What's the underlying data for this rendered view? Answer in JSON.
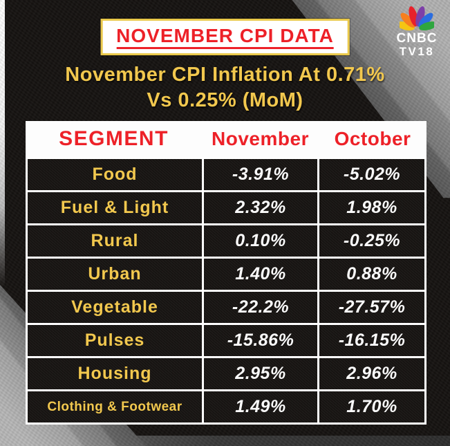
{
  "banner": {
    "title": "NOVEMBER CPI DATA"
  },
  "logo": {
    "line1": "CNBC",
    "line2": "TV18"
  },
  "subtitle": {
    "line1": "November CPI Inflation At 0.71%",
    "line2": "Vs 0.25% (MoM)"
  },
  "table": {
    "headers": [
      "SEGMENT",
      "November",
      "October"
    ],
    "rows": [
      {
        "segment": "Food",
        "november": "-3.91%",
        "october": "-5.02%"
      },
      {
        "segment": "Fuel & Light",
        "november": "2.32%",
        "october": "1.98%"
      },
      {
        "segment": "Rural",
        "november": "0.10%",
        "october": "-0.25%"
      },
      {
        "segment": "Urban",
        "november": "1.40%",
        "october": "0.88%"
      },
      {
        "segment": "Vegetable",
        "november": "-22.2%",
        "october": "-27.57%"
      },
      {
        "segment": "Pulses",
        "november": "-15.86%",
        "october": "-16.15%"
      },
      {
        "segment": "Housing",
        "november": "2.95%",
        "october": "2.96%"
      },
      {
        "segment": "Clothing & Footwear",
        "november": "1.49%",
        "october": "1.70%"
      }
    ]
  },
  "colors": {
    "accent_red": "#ed2128",
    "accent_yellow": "#f2c84e",
    "banner_border_gold": "#eac94b",
    "cell_background": "#1a1715",
    "value_white": "#fbfbfb"
  },
  "chart_data": {
    "type": "table",
    "title": "NOVEMBER CPI DATA",
    "subtitle": "November CPI Inflation At 0.71% Vs 0.25% (MoM)",
    "columns": [
      "SEGMENT",
      "November",
      "October"
    ],
    "rows": [
      [
        "Food",
        -3.91,
        -5.02
      ],
      [
        "Fuel & Light",
        2.32,
        1.98
      ],
      [
        "Rural",
        0.1,
        -0.25
      ],
      [
        "Urban",
        1.4,
        0.88
      ],
      [
        "Vegetable",
        -22.2,
        -27.57
      ],
      [
        "Pulses",
        -15.86,
        -16.15
      ],
      [
        "Housing",
        2.95,
        2.96
      ],
      [
        "Clothing & Footwear",
        1.49,
        1.7
      ]
    ],
    "units": "percent change MoM"
  }
}
